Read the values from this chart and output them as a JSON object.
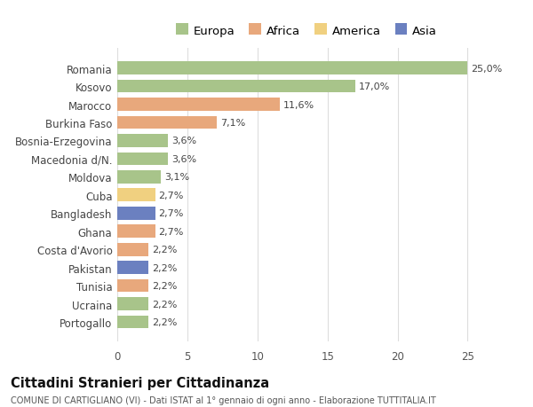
{
  "countries": [
    "Romania",
    "Kosovo",
    "Marocco",
    "Burkina Faso",
    "Bosnia-Erzegovina",
    "Macedonia d/N.",
    "Moldova",
    "Cuba",
    "Bangladesh",
    "Ghana",
    "Costa d'Avorio",
    "Pakistan",
    "Tunisia",
    "Ucraina",
    "Portogallo"
  ],
  "values": [
    25.0,
    17.0,
    11.6,
    7.1,
    3.6,
    3.6,
    3.1,
    2.7,
    2.7,
    2.7,
    2.2,
    2.2,
    2.2,
    2.2,
    2.2
  ],
  "labels": [
    "25,0%",
    "17,0%",
    "11,6%",
    "7,1%",
    "3,6%",
    "3,6%",
    "3,1%",
    "2,7%",
    "2,7%",
    "2,7%",
    "2,2%",
    "2,2%",
    "2,2%",
    "2,2%",
    "2,2%"
  ],
  "colors": [
    "#a8c48a",
    "#a8c48a",
    "#e8a87c",
    "#e8a87c",
    "#a8c48a",
    "#a8c48a",
    "#a8c48a",
    "#f0d080",
    "#6b80c0",
    "#e8a87c",
    "#e8a87c",
    "#6b80c0",
    "#e8a87c",
    "#a8c48a",
    "#a8c48a"
  ],
  "legend_labels": [
    "Europa",
    "Africa",
    "America",
    "Asia"
  ],
  "legend_colors": [
    "#a8c48a",
    "#e8a87c",
    "#f0d080",
    "#6b80c0"
  ],
  "xlim": [
    0,
    27
  ],
  "xticks": [
    0,
    5,
    10,
    15,
    20,
    25
  ],
  "title": "Cittadini Stranieri per Cittadinanza",
  "subtitle": "COMUNE DI CARTIGLIANO (VI) - Dati ISTAT al 1° gennaio di ogni anno - Elaborazione TUTTITALIA.IT",
  "bg_color": "#ffffff",
  "bar_bg_color": "#ffffff",
  "grid_color": "#dddddd"
}
